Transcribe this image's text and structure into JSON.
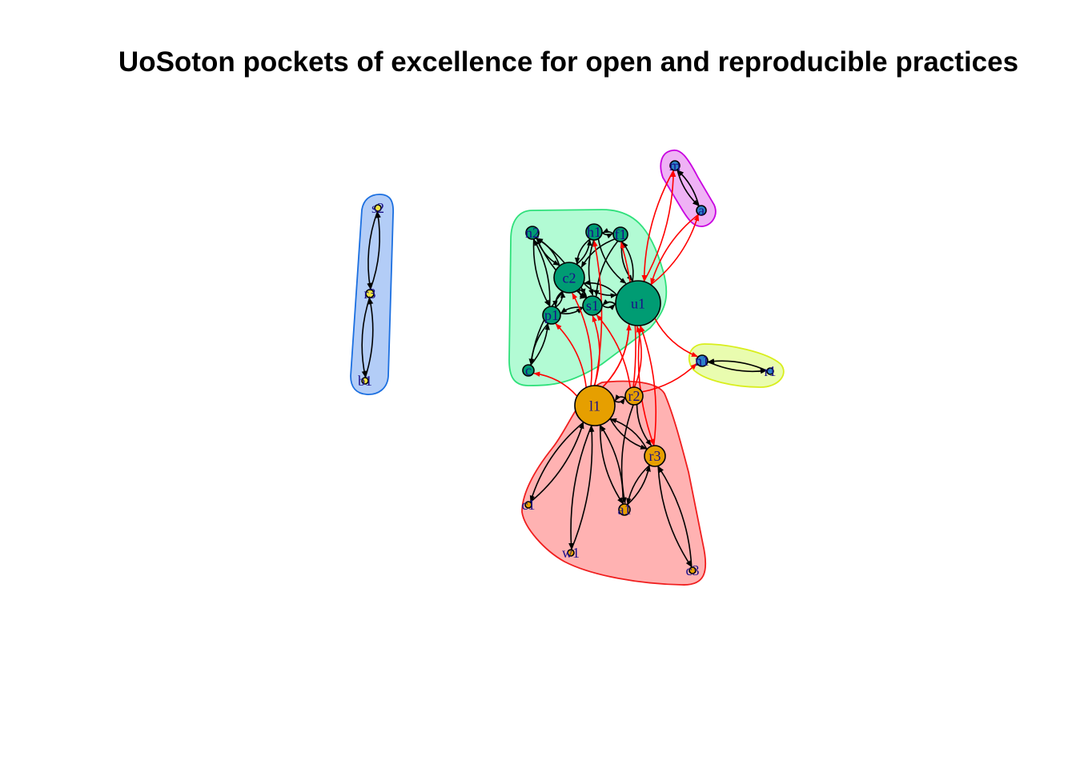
{
  "title": "UoSoton pockets of excellence for open and reproducible practices",
  "colors": {
    "edge_internal": "#000000",
    "edge_cross": "#ff0000",
    "node_green": "#009c73",
    "node_orange": "#e69f00",
    "node_blue": "#2b80c8",
    "node_yellow": "#f0e442",
    "label": "#1a0f8a"
  },
  "groups": [
    {
      "name": "blue",
      "fill": "#b3cdf7",
      "stroke": "#1b6fe0",
      "nodes": [
        "s2",
        "r3b",
        "b1"
      ]
    },
    {
      "name": "green",
      "fill": "#b2fbd4",
      "stroke": "#2ee07a",
      "nodes": [
        "n2",
        "h1",
        "f1",
        "c2",
        "s1",
        "p1",
        "u1",
        "c_g"
      ]
    },
    {
      "name": "magenta",
      "fill": "#efb2f5",
      "stroke": "#c800e0",
      "nodes": [
        "m_top",
        "m_bot"
      ]
    },
    {
      "name": "yellow",
      "fill": "#e9fcaf",
      "stroke": "#d9ee1c",
      "nodes": [
        "n1",
        "r1"
      ]
    },
    {
      "name": "red",
      "fill": "#ffb2b2",
      "stroke": "#f01e1e",
      "nodes": [
        "l1",
        "r2",
        "r3",
        "c1",
        "a1",
        "w1",
        "c3"
      ]
    }
  ],
  "nodes": [
    {
      "id": "s2",
      "label": "s2",
      "color": "yellow"
    },
    {
      "id": "r3b",
      "label": "r3",
      "color": "yellow"
    },
    {
      "id": "b1",
      "label": "b1",
      "color": "yellow"
    },
    {
      "id": "n2",
      "label": "n2",
      "color": "green"
    },
    {
      "id": "h1",
      "label": "h1",
      "color": "green"
    },
    {
      "id": "f1",
      "label": "f1",
      "color": "green"
    },
    {
      "id": "c2",
      "label": "c2",
      "color": "green"
    },
    {
      "id": "s1",
      "label": "s1",
      "color": "green"
    },
    {
      "id": "p1",
      "label": "p1",
      "color": "green"
    },
    {
      "id": "u1",
      "label": "u1",
      "color": "green"
    },
    {
      "id": "c_g",
      "label": "c",
      "color": "green"
    },
    {
      "id": "m_top",
      "label": "m",
      "color": "blue"
    },
    {
      "id": "m_bot",
      "label": "a",
      "color": "blue"
    },
    {
      "id": "n1",
      "label": "n1",
      "color": "blue"
    },
    {
      "id": "r1",
      "label": "r1",
      "color": "blue"
    },
    {
      "id": "l1",
      "label": "l1",
      "color": "orange"
    },
    {
      "id": "r2",
      "label": "r2",
      "color": "orange"
    },
    {
      "id": "r3",
      "label": "r3",
      "color": "orange"
    },
    {
      "id": "c1",
      "label": "c1",
      "color": "orange"
    },
    {
      "id": "a1",
      "label": "a1",
      "color": "orange"
    },
    {
      "id": "w1",
      "label": "w1",
      "color": "orange"
    },
    {
      "id": "c3",
      "label": "c3",
      "color": "orange"
    }
  ],
  "edges": [
    {
      "from": "s2",
      "to": "r3b",
      "type": "internal"
    },
    {
      "from": "r3b",
      "to": "s2",
      "type": "internal"
    },
    {
      "from": "r3b",
      "to": "b1",
      "type": "internal"
    },
    {
      "from": "b1",
      "to": "r3b",
      "type": "internal"
    },
    {
      "from": "n2",
      "to": "c2",
      "type": "internal"
    },
    {
      "from": "c2",
      "to": "n2",
      "type": "internal"
    },
    {
      "from": "n2",
      "to": "p1",
      "type": "internal"
    },
    {
      "from": "p1",
      "to": "n2",
      "type": "internal"
    },
    {
      "from": "n2",
      "to": "s1",
      "type": "internal"
    },
    {
      "from": "s1",
      "to": "n2",
      "type": "internal"
    },
    {
      "from": "h1",
      "to": "f1",
      "type": "internal"
    },
    {
      "from": "f1",
      "to": "h1",
      "type": "internal"
    },
    {
      "from": "h1",
      "to": "c2",
      "type": "internal"
    },
    {
      "from": "c2",
      "to": "h1",
      "type": "internal"
    },
    {
      "from": "h1",
      "to": "u1",
      "type": "internal"
    },
    {
      "from": "h1",
      "to": "s1",
      "type": "internal"
    },
    {
      "from": "f1",
      "to": "u1",
      "type": "internal"
    },
    {
      "from": "u1",
      "to": "f1",
      "type": "internal"
    },
    {
      "from": "f1",
      "to": "s1",
      "type": "internal"
    },
    {
      "from": "f1",
      "to": "c2",
      "type": "internal"
    },
    {
      "from": "c2",
      "to": "s1",
      "type": "internal"
    },
    {
      "from": "s1",
      "to": "c2",
      "type": "internal"
    },
    {
      "from": "c2",
      "to": "u1",
      "type": "internal"
    },
    {
      "from": "u1",
      "to": "c2",
      "type": "internal"
    },
    {
      "from": "c2",
      "to": "p1",
      "type": "internal"
    },
    {
      "from": "p1",
      "to": "c2",
      "type": "internal"
    },
    {
      "from": "s1",
      "to": "u1",
      "type": "internal"
    },
    {
      "from": "u1",
      "to": "s1",
      "type": "internal"
    },
    {
      "from": "s1",
      "to": "p1",
      "type": "internal"
    },
    {
      "from": "p1",
      "to": "s1",
      "type": "internal"
    },
    {
      "from": "p1",
      "to": "c_g",
      "type": "internal"
    },
    {
      "from": "c_g",
      "to": "p1",
      "type": "internal"
    },
    {
      "from": "c2",
      "to": "c_g",
      "type": "internal"
    },
    {
      "from": "m_top",
      "to": "m_bot",
      "type": "internal"
    },
    {
      "from": "m_bot",
      "to": "m_top",
      "type": "internal"
    },
    {
      "from": "n1",
      "to": "r1",
      "type": "internal"
    },
    {
      "from": "r1",
      "to": "n1",
      "type": "internal"
    },
    {
      "from": "l1",
      "to": "r2",
      "type": "internal"
    },
    {
      "from": "r2",
      "to": "l1",
      "type": "internal"
    },
    {
      "from": "l1",
      "to": "r3",
      "type": "internal"
    },
    {
      "from": "r3",
      "to": "l1",
      "type": "internal"
    },
    {
      "from": "r2",
      "to": "r3",
      "type": "internal"
    },
    {
      "from": "l1",
      "to": "c1",
      "type": "internal"
    },
    {
      "from": "c1",
      "to": "l1",
      "type": "internal"
    },
    {
      "from": "l1",
      "to": "w1",
      "type": "internal"
    },
    {
      "from": "w1",
      "to": "l1",
      "type": "internal"
    },
    {
      "from": "l1",
      "to": "a1",
      "type": "internal"
    },
    {
      "from": "a1",
      "to": "l1",
      "type": "internal"
    },
    {
      "from": "r3",
      "to": "a1",
      "type": "internal"
    },
    {
      "from": "a1",
      "to": "r3",
      "type": "internal"
    },
    {
      "from": "r2",
      "to": "a1",
      "type": "internal"
    },
    {
      "from": "r3",
      "to": "c3",
      "type": "internal"
    },
    {
      "from": "c3",
      "to": "r3",
      "type": "internal"
    },
    {
      "from": "l1",
      "to": "c_g",
      "type": "cross"
    },
    {
      "from": "l1",
      "to": "p1",
      "type": "cross"
    },
    {
      "from": "l1",
      "to": "c2",
      "type": "cross"
    },
    {
      "from": "l1",
      "to": "s1",
      "type": "cross"
    },
    {
      "from": "l1",
      "to": "h1",
      "type": "cross"
    },
    {
      "from": "l1",
      "to": "u1",
      "type": "cross"
    },
    {
      "from": "r2",
      "to": "u1",
      "type": "cross"
    },
    {
      "from": "r2",
      "to": "s1",
      "type": "cross"
    },
    {
      "from": "r2",
      "to": "f1",
      "type": "cross"
    },
    {
      "from": "r3",
      "to": "u1",
      "type": "cross"
    },
    {
      "from": "u1",
      "to": "r3",
      "type": "cross"
    },
    {
      "from": "r2",
      "to": "n1",
      "type": "cross"
    },
    {
      "from": "u1",
      "to": "n1",
      "type": "cross"
    },
    {
      "from": "u1",
      "to": "m_top",
      "type": "cross"
    },
    {
      "from": "m_top",
      "to": "u1",
      "type": "cross"
    },
    {
      "from": "u1",
      "to": "m_bot",
      "type": "cross"
    },
    {
      "from": "m_bot",
      "to": "u1",
      "type": "cross"
    },
    {
      "from": "l1",
      "to": "u1",
      "type": "cross"
    }
  ]
}
